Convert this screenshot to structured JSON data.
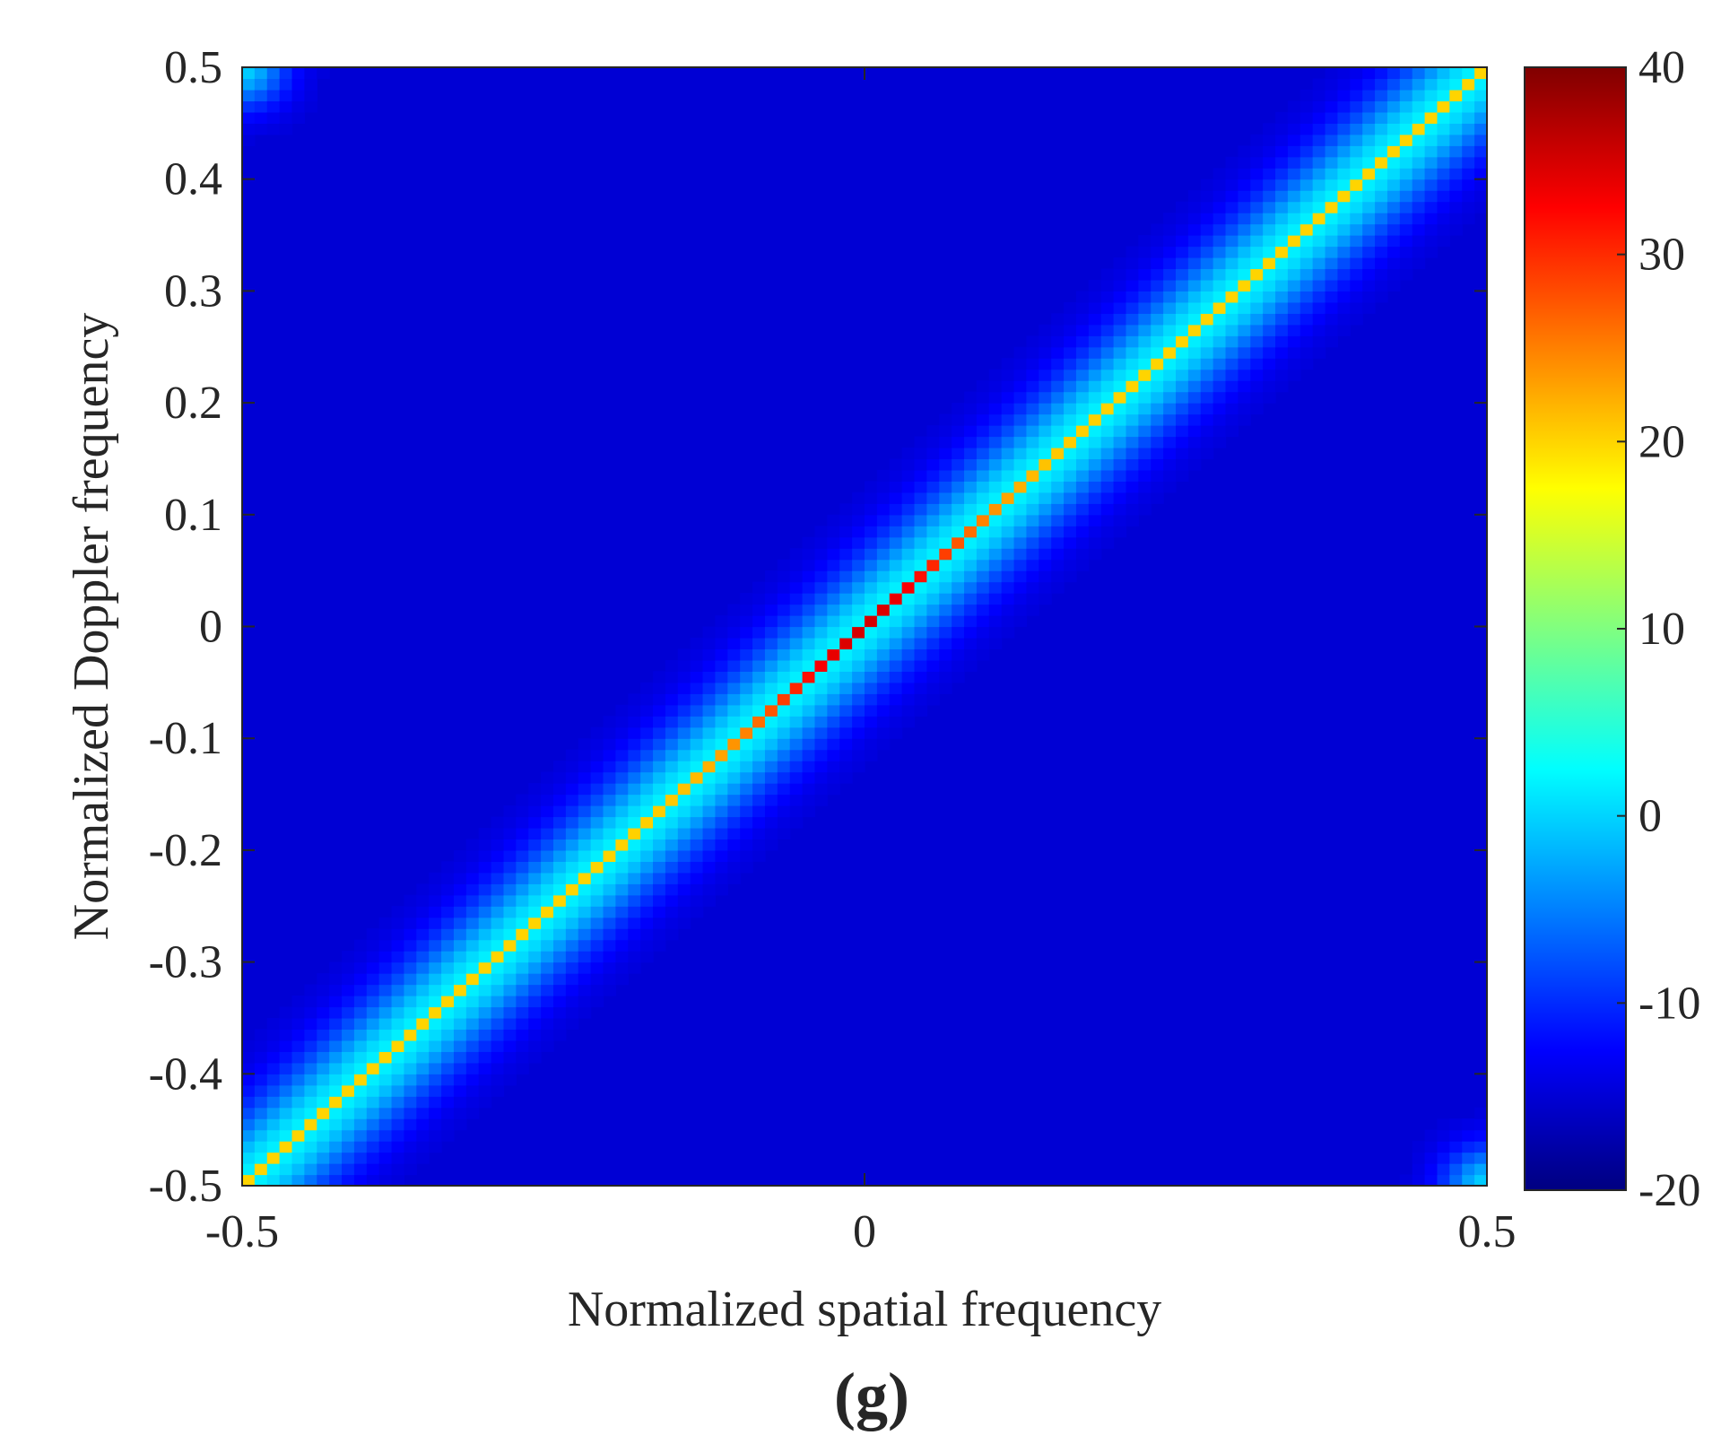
{
  "panel_label": "(g)",
  "chart_data": {
    "type": "heatmap",
    "title": "",
    "xlabel": "Normalized spatial frequency",
    "ylabel": "Normalized Doppler frequency",
    "xlim": [
      -0.5,
      0.5
    ],
    "ylim": [
      -0.5,
      0.5
    ],
    "xticks": [
      -0.5,
      0,
      0.5
    ],
    "xtick_labels": [
      "-0.5",
      "0",
      "0.5"
    ],
    "yticks": [
      0.5,
      0.4,
      0.3,
      0.2,
      0.1,
      0,
      -0.1,
      -0.2,
      -0.3,
      -0.4,
      -0.5
    ],
    "ytick_labels": [
      "0.5",
      "0.4",
      "0.3",
      "0.2",
      "0.1",
      "0",
      "-0.1",
      "-0.2",
      "-0.3",
      "-0.4",
      "-0.5"
    ],
    "colorbar": {
      "colormap": "jet",
      "clim": [
        -20,
        40
      ],
      "ticks": [
        40,
        30,
        20,
        10,
        0,
        -10,
        -20
      ],
      "tick_labels": [
        "40",
        "30",
        "20",
        "10",
        "0",
        "-10",
        "-20"
      ]
    },
    "grid": false,
    "background_value": -15,
    "ridge": {
      "description": "clutter ridge along Doppler = spatial frequency",
      "slope": 1,
      "intercept": 0,
      "peak_value_at_center": 35,
      "peak_value_at_ends": 20,
      "halo_value": 2
    },
    "corner_highlights": [
      {
        "x": -0.5,
        "y": 0.5,
        "value": 0
      },
      {
        "x": 0.5,
        "y": -0.5,
        "value": 0
      }
    ]
  }
}
